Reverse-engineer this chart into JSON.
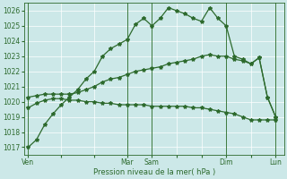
{
  "xlabel": "Pression niveau de la mer( hPa )",
  "bg_color": "#cce8e8",
  "grid_color": "#ffffff",
  "line_color": "#2d6a2d",
  "ylim": [
    1016.5,
    1026.5
  ],
  "yticks": [
    1017,
    1018,
    1019,
    1020,
    1021,
    1022,
    1023,
    1024,
    1025,
    1026
  ],
  "day_labels": [
    "Ven",
    "",
    "",
    "Mar",
    "Sam",
    "",
    "",
    "Dim",
    "",
    "Lun"
  ],
  "day_positions": [
    0,
    4,
    8,
    12,
    15,
    18,
    21,
    24,
    27,
    30
  ],
  "xlim": [
    -0.5,
    31
  ],
  "series1_x": [
    0,
    1,
    2,
    3,
    4,
    5,
    6,
    7,
    8,
    9,
    10,
    11,
    12,
    13,
    14,
    15,
    16,
    17,
    18,
    19,
    20,
    21,
    22,
    23,
    24,
    25,
    26,
    27,
    28,
    29,
    30
  ],
  "series1_y": [
    1017.0,
    1017.5,
    1018.5,
    1019.2,
    1019.8,
    1020.3,
    1020.8,
    1021.5,
    1022.0,
    1023.0,
    1023.5,
    1023.8,
    1024.1,
    1025.1,
    1025.5,
    1025.0,
    1025.5,
    1026.2,
    1026.0,
    1025.8,
    1025.5,
    1025.3,
    1026.2,
    1025.5,
    1025.0,
    1023.0,
    1022.8,
    1022.5,
    1022.9,
    1020.3,
    1019.0
  ],
  "series2_x": [
    0,
    1,
    2,
    3,
    4,
    5,
    6,
    7,
    8,
    9,
    10,
    11,
    12,
    13,
    14,
    15,
    16,
    17,
    18,
    19,
    20,
    21,
    22,
    23,
    24,
    25,
    26,
    27,
    28,
    29,
    30
  ],
  "series2_y": [
    1019.6,
    1019.9,
    1020.1,
    1020.2,
    1020.2,
    1020.1,
    1020.1,
    1020.0,
    1020.0,
    1019.9,
    1019.9,
    1019.8,
    1019.8,
    1019.8,
    1019.8,
    1019.7,
    1019.7,
    1019.7,
    1019.7,
    1019.7,
    1019.6,
    1019.6,
    1019.5,
    1019.4,
    1019.3,
    1019.2,
    1019.0,
    1018.8,
    1018.8,
    1018.8,
    1018.8
  ],
  "series3_x": [
    0,
    1,
    2,
    3,
    4,
    5,
    6,
    7,
    8,
    9,
    10,
    11,
    12,
    13,
    14,
    15,
    16,
    17,
    18,
    19,
    20,
    21,
    22,
    23,
    24,
    25,
    26,
    27,
    28,
    29,
    30
  ],
  "series3_y": [
    1020.3,
    1020.4,
    1020.5,
    1020.5,
    1020.5,
    1020.5,
    1020.6,
    1020.8,
    1021.0,
    1021.3,
    1021.5,
    1021.6,
    1021.8,
    1022.0,
    1022.1,
    1022.2,
    1022.3,
    1022.5,
    1022.6,
    1022.7,
    1022.8,
    1023.0,
    1023.1,
    1023.0,
    1023.0,
    1022.8,
    1022.7,
    1022.5,
    1022.9,
    1020.3,
    1019.0
  ],
  "vline_positions": [
    0,
    12,
    15,
    24,
    30
  ],
  "vline_color": "#3d7a3d"
}
